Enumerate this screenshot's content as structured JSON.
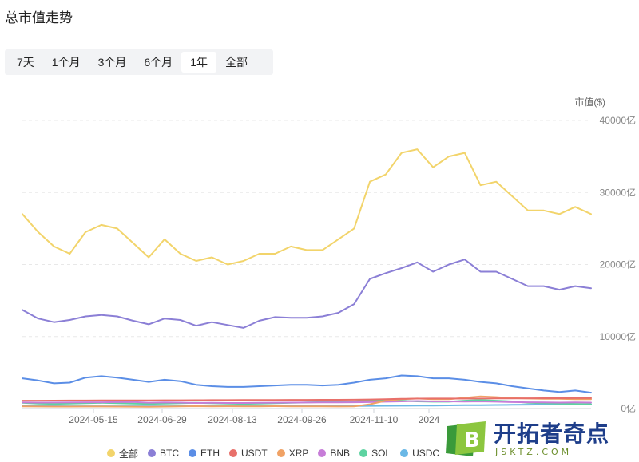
{
  "page": {
    "title": "总市值走势"
  },
  "range_tabs": [
    {
      "label": "7天",
      "active": false
    },
    {
      "label": "1个月",
      "active": false
    },
    {
      "label": "3个月",
      "active": false
    },
    {
      "label": "6个月",
      "active": false
    },
    {
      "label": "1年",
      "active": true
    },
    {
      "label": "全部",
      "active": false
    }
  ],
  "watermark": {
    "main": "开拓者奇点",
    "sub": "JSKTZ.COM",
    "logo_letter": "B"
  },
  "chart_data": {
    "type": "line",
    "ylabel": "市值($)",
    "ylim": [
      0,
      40000
    ],
    "yticks": [
      {
        "value": 0,
        "label": "0亿"
      },
      {
        "value": 10000,
        "label": "10000亿"
      },
      {
        "value": 20000,
        "label": "20000亿"
      },
      {
        "value": 30000,
        "label": "30000亿"
      },
      {
        "value": 40000,
        "label": "40000亿"
      }
    ],
    "xticks": [
      "2024-05-15",
      "2024-06-29",
      "2024-08-13",
      "2024-09-26",
      "2024-11-10",
      "2024"
    ],
    "x": [
      "2024-04-06",
      "2024-04-16",
      "2024-04-26",
      "2024-05-06",
      "2024-05-16",
      "2024-05-26",
      "2024-06-05",
      "2024-06-15",
      "2024-06-25",
      "2024-07-05",
      "2024-07-15",
      "2024-07-25",
      "2024-08-04",
      "2024-08-14",
      "2024-08-24",
      "2024-09-03",
      "2024-09-13",
      "2024-09-23",
      "2024-10-03",
      "2024-10-13",
      "2024-10-23",
      "2024-11-02",
      "2024-11-12",
      "2024-11-22",
      "2024-12-02",
      "2024-12-12",
      "2024-12-22",
      "2025-01-01",
      "2025-01-11",
      "2025-01-21",
      "2025-01-31",
      "2025-02-10",
      "2025-02-20",
      "2025-03-02",
      "2025-03-12",
      "2025-03-22",
      "2025-04-01"
    ],
    "grid": true,
    "legend_position": "bottom",
    "series": [
      {
        "name": "全部",
        "color": "#f2d46b",
        "width": 2,
        "values": [
          27000,
          24500,
          22500,
          21500,
          24500,
          25500,
          25000,
          23000,
          21000,
          23500,
          21500,
          20500,
          21000,
          20000,
          20500,
          21500,
          21500,
          22500,
          22000,
          22000,
          23500,
          25000,
          31500,
          32500,
          35500,
          36000,
          33500,
          35000,
          35500,
          31000,
          31500,
          29500,
          27500,
          27500,
          27000,
          28000,
          27000
        ]
      },
      {
        "name": "BTC",
        "color": "#8b7fd6",
        "width": 2,
        "values": [
          13700,
          12500,
          12000,
          12300,
          12800,
          13000,
          12800,
          12200,
          11700,
          12500,
          12300,
          11500,
          12000,
          11600,
          11200,
          12200,
          12700,
          12600,
          12600,
          12800,
          13300,
          14500,
          18000,
          18800,
          19500,
          20300,
          19000,
          20000,
          20700,
          19000,
          19000,
          18000,
          17000,
          17000,
          16500,
          17000,
          16700
        ]
      },
      {
        "name": "ETH",
        "color": "#5b8ee6",
        "width": 2,
        "values": [
          4200,
          3900,
          3500,
          3600,
          4300,
          4500,
          4300,
          4000,
          3700,
          4000,
          3800,
          3300,
          3100,
          3000,
          3000,
          3100,
          3200,
          3300,
          3300,
          3200,
          3300,
          3600,
          4000,
          4200,
          4600,
          4500,
          4200,
          4200,
          4000,
          3700,
          3500,
          3100,
          2800,
          2500,
          2300,
          2500,
          2200
        ]
      },
      {
        "name": "USDT",
        "color": "#e8706a",
        "width": 2,
        "values": [
          1100,
          1100,
          1110,
          1120,
          1120,
          1130,
          1130,
          1140,
          1140,
          1150,
          1150,
          1160,
          1170,
          1180,
          1190,
          1200,
          1200,
          1210,
          1210,
          1220,
          1220,
          1230,
          1260,
          1300,
          1350,
          1380,
          1400,
          1400,
          1390,
          1400,
          1410,
          1420,
          1430,
          1440,
          1440,
          1450,
          1450
        ]
      },
      {
        "name": "XRP",
        "color": "#f0a265",
        "width": 2,
        "values": [
          300,
          290,
          280,
          280,
          290,
          290,
          280,
          270,
          260,
          280,
          300,
          330,
          300,
          320,
          310,
          310,
          330,
          310,
          300,
          300,
          290,
          300,
          600,
          1100,
          1300,
          1400,
          1300,
          1300,
          1500,
          1700,
          1600,
          1450,
          1400,
          1350,
          1350,
          1300,
          1300
        ]
      },
      {
        "name": "BNB",
        "color": "#c77dd8",
        "width": 2,
        "values": [
          850,
          830,
          840,
          860,
          880,
          880,
          900,
          920,
          820,
          850,
          830,
          780,
          800,
          780,
          780,
          800,
          820,
          830,
          840,
          860,
          850,
          870,
          900,
          950,
          1000,
          1050,
          1000,
          1000,
          980,
          1000,
          950,
          900,
          870,
          850,
          830,
          850,
          830
        ]
      },
      {
        "name": "SOL",
        "color": "#5ed3a1",
        "width": 2,
        "values": [
          800,
          700,
          650,
          700,
          750,
          800,
          750,
          700,
          650,
          700,
          750,
          800,
          750,
          700,
          650,
          700,
          750,
          800,
          850,
          900,
          900,
          1000,
          1200,
          1150,
          1100,
          1000,
          950,
          950,
          1100,
          1200,
          1100,
          1000,
          800,
          750,
          700,
          650,
          600
        ]
      },
      {
        "name": "USDC",
        "color": "#6ab8e6",
        "width": 2,
        "values": [
          330,
          330,
          330,
          320,
          320,
          320,
          320,
          320,
          320,
          320,
          330,
          330,
          340,
          340,
          350,
          350,
          360,
          360,
          360,
          360,
          360,
          370,
          380,
          390,
          400,
          410,
          420,
          440,
          460,
          480,
          500,
          520,
          540,
          560,
          580,
          600,
          600
        ]
      }
    ]
  }
}
